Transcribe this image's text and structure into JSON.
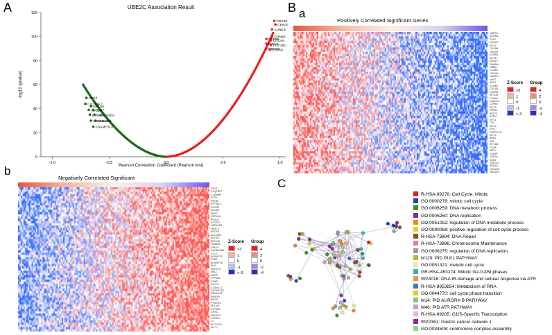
{
  "panel_labels": {
    "A": "A",
    "B": "B",
    "B_sub": "a",
    "b": "b",
    "C": "C"
  },
  "panel_A": {
    "chart_data": {
      "type": "scatter",
      "title": "UBE2C Association Result",
      "xlabel": "Pearson Correlation Coefficient (Pearson test)",
      "ylabel": "-log10 (pvalue)",
      "xlim": [
        -1.1,
        1.05
      ],
      "ylim": [
        0,
        120
      ],
      "xticks": [
        "-1.0",
        "-0.5",
        "0.0",
        "0.5",
        "1.0"
      ],
      "xtick_values": [
        -1.0,
        -0.5,
        0.0,
        0.5,
        1.0
      ],
      "yticks": [
        "0",
        "20",
        "40",
        "60",
        "80",
        "100",
        "120"
      ],
      "ytick_values": [
        0,
        20,
        40,
        60,
        80,
        100,
        120
      ],
      "negative_color": "#1b6b1b",
      "positive_color": "#e8201c",
      "labeled_positive": [
        {
          "label": "CDC20",
          "x": 0.95,
          "y": 113
        },
        {
          "label": "CENPA",
          "x": 0.96,
          "y": 110
        },
        {
          "label": "AURKB",
          "x": 0.93,
          "y": 106
        },
        {
          "label": "CDNB2",
          "x": 0.93,
          "y": 100
        },
        {
          "label": "CEP55",
          "x": 0.88,
          "y": 98
        },
        {
          "label": "CDCA8",
          "x": 0.92,
          "y": 97
        },
        {
          "label": "BIRC5",
          "x": 0.88,
          "y": 94
        },
        {
          "label": "CDC25C",
          "x": 0.92,
          "y": 93
        },
        {
          "label": "CDKN3",
          "x": 0.88,
          "y": 90
        },
        {
          "label": "CDCA5",
          "x": 0.91,
          "y": 89
        }
      ],
      "labeled_negative": [
        {
          "label": "CRY2",
          "x": -0.7,
          "y": 49
        },
        {
          "label": "C1QTNF7",
          "x": -0.71,
          "y": 44
        },
        {
          "label": "ABCA8",
          "x": -0.66,
          "y": 42
        },
        {
          "label": "ADH1A",
          "x": -0.68,
          "y": 39
        },
        {
          "label": "CBX7",
          "x": -0.64,
          "y": 39
        },
        {
          "label": "CYP4B1",
          "x": -0.67,
          "y": 35
        },
        {
          "label": "CACNA2D2",
          "x": -0.63,
          "y": 35
        },
        {
          "label": "CD300LG",
          "x": -0.66,
          "y": 30
        },
        {
          "label": "C16orf89",
          "x": -0.62,
          "y": 30
        },
        {
          "label": "ADAMTSL3",
          "x": -0.64,
          "y": 25
        }
      ]
    }
  },
  "panel_Ba": {
    "title": "Positively Correlated Significant Genes",
    "genes": [
      "UBE2C",
      "AURKB",
      "TPX2",
      "CDC20",
      "KIF2C",
      "CDCA8",
      "TROAP",
      "CENPA",
      "KIF4A",
      "MYBL2",
      "FAM64A",
      "UBE2T",
      "CCNB2",
      "CDCA3",
      "NCAPH",
      "NUF2",
      "SKA1",
      "CCNB1",
      "CDCA5",
      "CDKN3",
      "KIF20A",
      "CCNA2",
      "CKAP2L",
      "CEP55",
      "KIF23",
      "PRR11",
      "BIRC5",
      "ASPM",
      "KIF11",
      "TTK",
      "KIF15",
      "PLK1",
      "DEPDC1B",
      "KIF14",
      "BUB1",
      "PBK",
      "KIF18B",
      "CCNF",
      "MELK",
      "CENPF",
      "TOP2A",
      "NEK2",
      "DEPDC1",
      "BUB1B",
      "CDC25C",
      "NUSAP1",
      "GTSE1",
      "E2F8",
      "ESPL1",
      "RRM2",
      "SPAG5",
      "PTTG1",
      "CENPW",
      "HJURP",
      "ZWINT",
      "MAD2L1",
      "CENPE",
      "DLGAP5",
      "NCAPG",
      "KIFC1",
      "MKI67",
      "CDK1",
      "POLQ",
      "NCAPD2"
    ],
    "legend": {
      "zscore_title": "Z-Score",
      "group_title": "Group",
      "zscore_items": [
        ">3",
        "1",
        "0",
        "-1",
        "<-3"
      ],
      "group_items": [
        "4",
        "2",
        "0",
        "-2",
        "-4"
      ]
    }
  },
  "panel_b": {
    "title": "Negatively Correlated Significant",
    "genes": [
      "CRY2",
      "C1QTNF7",
      "C16orf89",
      "TLR5",
      "RHOB",
      "ZFP36L2",
      "PCDH1",
      "SCN4B",
      "PAMT",
      "GPR146",
      "RUSC2",
      "ACVRL1",
      "HSPA12B",
      "NR3C2",
      "ABCA8",
      "SLC22A3",
      "ADH1A",
      "EEF1A2",
      "FAM43A",
      "GRIA2",
      "CACNA2D2",
      "CCL2",
      "ADAMTS3",
      "RTN1",
      "ADAMTS8",
      "SLN",
      "HECTD4",
      "MAL2",
      "LMO3",
      "CYP4B1",
      "TXNIP",
      "FXYD1",
      "CD300LG",
      "CACNA2D2",
      "RAP1GAP",
      "SNAP91",
      "MAGI2",
      "PTGER3",
      "PDL1M",
      "CYP4B1",
      "GPX3",
      "MAPK10",
      "CYP2U1",
      "C7",
      "SLCO2A1",
      "KLF4",
      "CTSH",
      "MCAM",
      "PGBD5",
      "CCRL1",
      "GSTM3"
    ],
    "legend": {
      "zscore_title": "Z-Score",
      "group_title": "Group",
      "zscore_items": [
        ">3",
        "1",
        "0",
        "-1",
        "<-3"
      ],
      "group_items": [
        "4",
        "2",
        "0",
        "-2",
        "-4"
      ]
    }
  },
  "panel_C": {
    "legend": [
      {
        "label": "R-HSA-69278: Cell Cycle, Mitotic",
        "color": "#e8201c"
      },
      {
        "label": "GO:0000278: mitotic cell cycle",
        "color": "#1f48b4"
      },
      {
        "label": "GO:0006259: DNA metabolic process",
        "color": "#2a9a2a"
      },
      {
        "label": "GO:0006260: DNA replication",
        "color": "#8e2a8e"
      },
      {
        "label": "GO:0051052: regulation of DNA metabolic process",
        "color": "#f08a1e"
      },
      {
        "label": "GO:0090068: positive regulation of cell cycle process",
        "color": "#e6d21a"
      },
      {
        "label": "R-HSA-73894: DNA Repair",
        "color": "#8a5222"
      },
      {
        "label": "R-HSA-73886: Chromosome Maintenance",
        "color": "#e87aa8"
      },
      {
        "label": "GO:0006275: regulation of DNA replication",
        "color": "#9a9a9a"
      },
      {
        "label": "M129: PID PLK1 PATHWAY",
        "color": "#b8b82e"
      },
      {
        "label": "GO:0051321: meiotic cell cycle",
        "color": "#f0ee9a"
      },
      {
        "label": "GR-HSA-453274: Mitotic G2-G2/M phases",
        "color": "#26b8c4"
      },
      {
        "label": "WP4016: DNA IR-damage and cellular response via ATR",
        "color": "#e89a3a"
      },
      {
        "label": "R-HSA-8953854: Metabolism of RNA",
        "color": "#2f7bc8"
      },
      {
        "label": "GO:0044770: cell cycle phase transition",
        "color": "#f3c21a"
      },
      {
        "label": "M14: PID AURORA B PATHWAY",
        "color": "#7ec87a"
      },
      {
        "label": "M46: PID ATR PATHWAY",
        "color": "#b9a6d6"
      },
      {
        "label": "R-HSA-69205: G1/S-Specific Transcription",
        "color": "#f0b6c6"
      },
      {
        "label": "WP2361: Gastric cancer network 1",
        "color": "#a2209a"
      },
      {
        "label": "GO:0034508: centromere complex assembly",
        "color": "#8ed48e"
      }
    ]
  }
}
